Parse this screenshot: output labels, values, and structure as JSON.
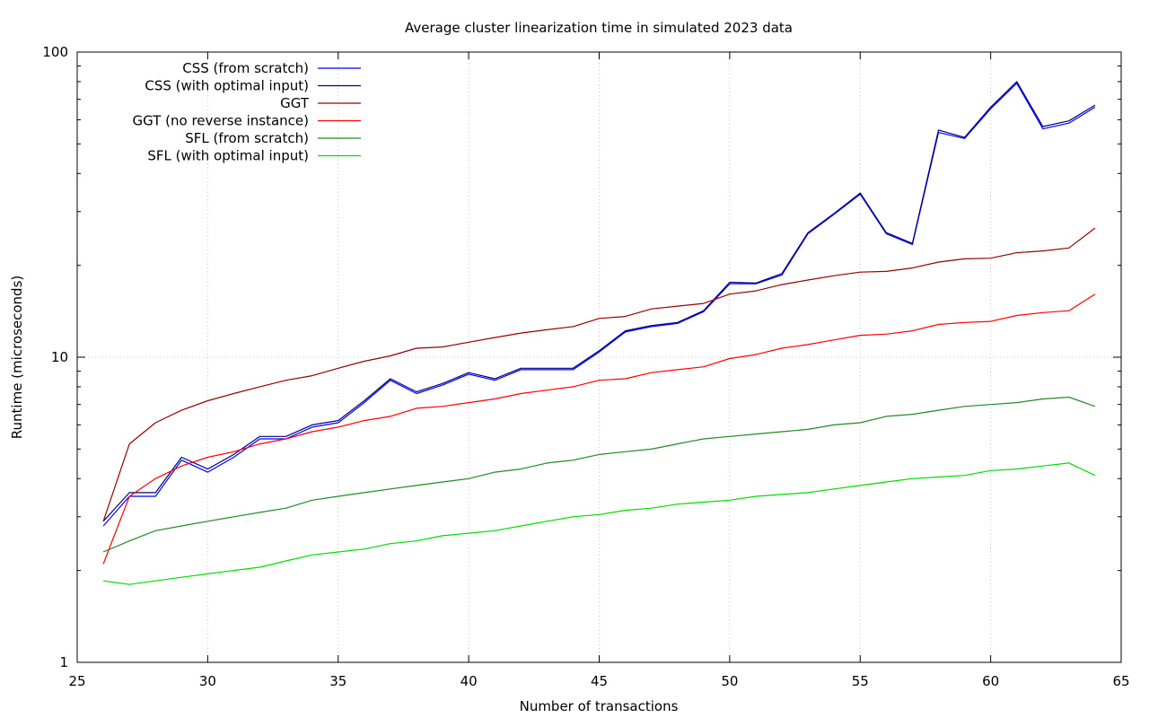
{
  "chart_data": {
    "type": "line",
    "title": "Average cluster linearization time in simulated 2023 data",
    "xlabel": "Number of transactions",
    "ylabel": "Runtime (microseconds)",
    "xlim": [
      25,
      65
    ],
    "ylim": [
      1,
      100
    ],
    "yscale": "log",
    "grid": true,
    "legend_position": "top-left",
    "x_ticks": [
      "25",
      "30",
      "35",
      "40",
      "45",
      "50",
      "55",
      "60",
      "65"
    ],
    "x_tick_values": [
      25,
      30,
      35,
      40,
      45,
      50,
      55,
      60,
      65
    ],
    "y_ticks": [
      "1",
      "10",
      "100"
    ],
    "y_tick_values": [
      1,
      10,
      100
    ],
    "x": [
      26,
      27,
      28,
      29,
      30,
      31,
      32,
      33,
      34,
      35,
      36,
      37,
      38,
      39,
      40,
      41,
      42,
      43,
      44,
      45,
      46,
      47,
      48,
      49,
      50,
      51,
      52,
      53,
      54,
      55,
      56,
      57,
      58,
      59,
      60,
      61,
      62,
      63,
      64
    ],
    "series": [
      {
        "name": "CSS (from scratch)",
        "color": "#0000ff",
        "values": [
          2.8,
          3.5,
          3.5,
          4.6,
          4.2,
          4.7,
          5.4,
          5.4,
          5.9,
          6.1,
          7.1,
          8.4,
          7.6,
          8.1,
          8.8,
          8.4,
          9.1,
          9.1,
          9.1,
          10.4,
          12.1,
          12.6,
          12.9,
          14.1,
          17.4,
          17.4,
          18.6,
          25.4,
          29.4,
          34.2,
          25.4,
          23.4,
          54.5,
          52.1,
          65.2,
          79.0,
          56.0,
          58.5,
          66.0
        ]
      },
      {
        "name": "CSS (with optimal input)",
        "color": "#000080",
        "values": [
          2.9,
          3.6,
          3.6,
          4.7,
          4.3,
          4.8,
          5.5,
          5.5,
          6.0,
          6.2,
          7.2,
          8.5,
          7.7,
          8.2,
          8.9,
          8.5,
          9.2,
          9.2,
          9.2,
          10.5,
          12.2,
          12.7,
          13.0,
          14.2,
          17.6,
          17.5,
          18.8,
          25.6,
          29.6,
          34.5,
          25.6,
          23.6,
          55.5,
          52.5,
          66.0,
          80.0,
          57.0,
          59.5,
          67.0
        ]
      },
      {
        "name": "GGT",
        "color": "#990000",
        "values": [
          2.9,
          5.2,
          6.1,
          6.7,
          7.2,
          7.6,
          8.0,
          8.4,
          8.7,
          9.2,
          9.7,
          10.1,
          10.7,
          10.8,
          11.2,
          11.6,
          12.0,
          12.3,
          12.6,
          13.4,
          13.6,
          14.4,
          14.7,
          15.0,
          16.1,
          16.5,
          17.3,
          17.9,
          18.5,
          19.0,
          19.1,
          19.6,
          20.5,
          21.0,
          21.1,
          22.0,
          22.3,
          22.8,
          26.5
        ]
      },
      {
        "name": "GGT (no reverse instance)",
        "color": "#ff0000",
        "values": [
          2.1,
          3.5,
          4.0,
          4.4,
          4.7,
          4.9,
          5.2,
          5.4,
          5.7,
          5.9,
          6.2,
          6.4,
          6.8,
          6.9,
          7.1,
          7.3,
          7.6,
          7.8,
          8.0,
          8.4,
          8.5,
          8.9,
          9.1,
          9.3,
          9.9,
          10.2,
          10.7,
          11.0,
          11.4,
          11.8,
          11.9,
          12.2,
          12.8,
          13.0,
          13.1,
          13.7,
          14.0,
          14.2,
          16.1
        ]
      },
      {
        "name": "SFL (from scratch)",
        "color": "#228b22",
        "values": [
          2.3,
          2.5,
          2.7,
          2.8,
          2.9,
          3.0,
          3.1,
          3.2,
          3.4,
          3.5,
          3.6,
          3.7,
          3.8,
          3.9,
          4.0,
          4.2,
          4.3,
          4.5,
          4.6,
          4.8,
          4.9,
          5.0,
          5.2,
          5.4,
          5.5,
          5.6,
          5.7,
          5.8,
          6.0,
          6.1,
          6.4,
          6.5,
          6.7,
          6.9,
          7.0,
          7.1,
          7.3,
          7.4,
          6.9
        ]
      },
      {
        "name": "SFL (with optimal input)",
        "color": "#00dd00",
        "values": [
          1.85,
          1.8,
          1.85,
          1.9,
          1.95,
          2.0,
          2.05,
          2.15,
          2.25,
          2.3,
          2.35,
          2.45,
          2.5,
          2.6,
          2.65,
          2.7,
          2.8,
          2.9,
          3.0,
          3.05,
          3.15,
          3.2,
          3.3,
          3.35,
          3.4,
          3.5,
          3.55,
          3.6,
          3.7,
          3.8,
          3.9,
          4.0,
          4.05,
          4.1,
          4.25,
          4.3,
          4.4,
          4.5,
          4.1
        ]
      }
    ]
  }
}
